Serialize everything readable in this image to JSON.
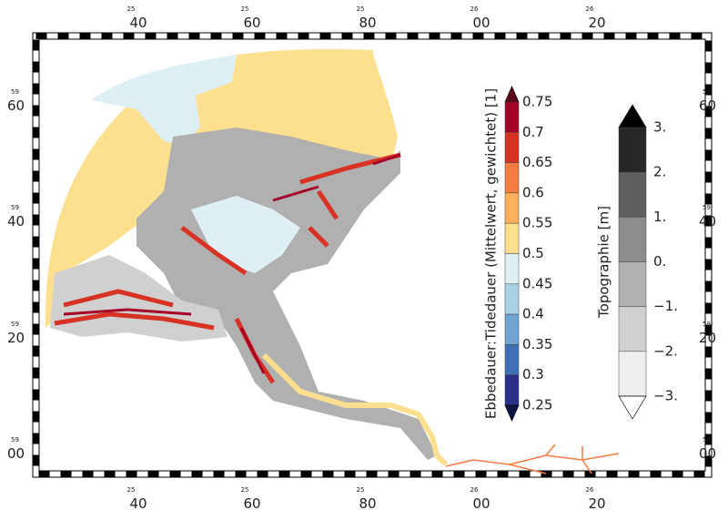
{
  "map": {
    "x_labels": [
      {
        "prefix": "25",
        "major": "40"
      },
      {
        "prefix": "25",
        "major": "60"
      },
      {
        "prefix": "25",
        "major": "80"
      },
      {
        "prefix": "26",
        "major": "00"
      },
      {
        "prefix": "26",
        "major": "20"
      }
    ],
    "y_labels": [
      {
        "prefix": "59",
        "major": "60"
      },
      {
        "prefix": "59",
        "major": "40"
      },
      {
        "prefix": "59",
        "major": "20"
      },
      {
        "prefix": "59",
        "major": "00"
      }
    ],
    "colorbar_tide": {
      "title": "Ebbedauer:Tidedauer (Mittelwert, gewichtet) [1]",
      "labels": [
        "0.75",
        "0.7",
        "0.65",
        "0.6",
        "0.55",
        "0.5",
        "0.45",
        "0.4",
        "0.35",
        "0.3",
        "0.25"
      ],
      "colors": [
        "#a50026",
        "#d83224",
        "#f47b42",
        "#fbb060",
        "#fde08f",
        "#dff0f5",
        "#a9d2e5",
        "#6fa4d0",
        "#3f6fb5",
        "#2a2f8a"
      ],
      "over_color": "#5c0a1a",
      "under_color": "#0f1547"
    },
    "colorbar_topo": {
      "title": "Topographie [m]",
      "labels": [
        "3.",
        "2.",
        "1.",
        "0.",
        "−1.",
        "−2.",
        "−3."
      ],
      "colors": [
        "#262626",
        "#5f5f5f",
        "#8c8c8c",
        "#b0b0b0",
        "#d0d0d0",
        "#efefef"
      ],
      "over_color": "#000000",
      "under_color": "#ffffff"
    }
  }
}
